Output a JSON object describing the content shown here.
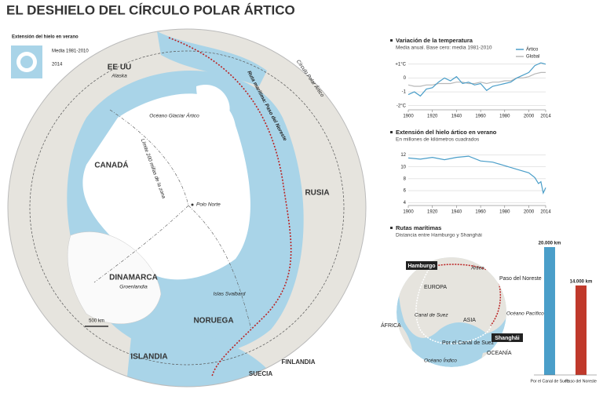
{
  "title": "EL DESHIELO DEL CÍRCULO POLAR ÁRTICO",
  "map": {
    "legend": {
      "title": "Extensión del hielo en verano",
      "mean": "Media 1981-2010",
      "current": "2014"
    },
    "labels": [
      "EE UU",
      "Alaska",
      "Océano Glaciar Ártico",
      "CANADÁ",
      "Límite 200 millas de la zona",
      "Polo Norte",
      "RUSIA",
      "DINAMARCA",
      "Groenlandia",
      "Islas Svalbard",
      "NORUEGA",
      "ISLANDIA",
      "SUECIA",
      "FINLANDIA",
      "Círculo Polar Ártico",
      "Ruta marítima: Paso del Noreste",
      "500 km"
    ]
  },
  "route_map": {
    "labels": [
      "Hamburgo",
      "Shanghái",
      "Ártico",
      "EUROPA",
      "ASIA",
      "ÁFRICA",
      "Canal de Suez",
      "Océano Índico",
      "Océano Pacífico",
      "Paso del Noreste",
      "Por el Canal de Suez",
      "OCEANÍA"
    ]
  },
  "chart_data": [
    {
      "type": "line",
      "title": "Variación de la temperatura",
      "subtitle": "Media anual. Base cero: media 1981-2010",
      "x": [
        1900,
        1905,
        1910,
        1915,
        1920,
        1925,
        1930,
        1935,
        1940,
        1945,
        1950,
        1955,
        1960,
        1965,
        1970,
        1975,
        1980,
        1985,
        1990,
        1995,
        2000,
        2005,
        2010,
        2014
      ],
      "series": [
        {
          "name": "Ártico",
          "color": "#4a9ec9",
          "values": [
            -1.2,
            -1.0,
            -1.3,
            -0.8,
            -0.7,
            -0.3,
            0.0,
            -0.2,
            0.1,
            -0.4,
            -0.3,
            -0.5,
            -0.4,
            -0.9,
            -0.6,
            -0.5,
            -0.4,
            -0.3,
            0.0,
            0.2,
            0.4,
            0.9,
            1.1,
            1.0
          ]
        },
        {
          "name": "Global",
          "color": "#b8b8b8",
          "values": [
            -0.5,
            -0.6,
            -0.6,
            -0.5,
            -0.5,
            -0.4,
            -0.4,
            -0.4,
            -0.3,
            -0.3,
            -0.4,
            -0.4,
            -0.3,
            -0.4,
            -0.3,
            -0.3,
            -0.2,
            -0.2,
            0.0,
            0.0,
            0.1,
            0.3,
            0.4,
            0.4
          ]
        }
      ],
      "xlim": [
        1900,
        2014
      ],
      "xticks": [
        1900,
        1920,
        1940,
        1960,
        1980,
        2000,
        2014
      ],
      "ylim": [
        -2.3,
        1.5
      ],
      "yticks": [
        {
          "value": 1,
          "label": "+1°C"
        },
        0,
        -1,
        {
          "value": -2,
          "label": "-2°C"
        }
      ],
      "grid": true
    },
    {
      "type": "line",
      "title": "Extensión del hielo ártico en verano",
      "subtitle": "En millones de kilómetros cuadrados",
      "x": [
        1900,
        1910,
        1920,
        1930,
        1940,
        1950,
        1960,
        1970,
        1980,
        1990,
        2000,
        2005,
        2008,
        2010,
        2012,
        2014
      ],
      "series": [
        {
          "name": "Ártico",
          "color": "#4a9ec9",
          "values": [
            11.5,
            11.3,
            11.6,
            11.2,
            11.6,
            11.8,
            11.0,
            10.8,
            10.2,
            9.6,
            9.0,
            8.2,
            7.2,
            7.5,
            5.6,
            6.5
          ]
        }
      ],
      "xlim": [
        1900,
        2014
      ],
      "xticks": [
        1900,
        1920,
        1940,
        1960,
        1980,
        2000,
        2014
      ],
      "ylim": [
        3.5,
        13
      ],
      "yticks": [
        4,
        6,
        8,
        10,
        12
      ],
      "grid": true
    },
    {
      "type": "bar",
      "title": "Rutas marítimas",
      "subtitle": "Distancia entre Hamburgo y Shanghái",
      "categories": [
        "Por el Canal de Suez",
        "Paso del Noreste"
      ],
      "values": [
        20000,
        14000
      ],
      "value_labels": [
        "20.000 km",
        "14.000 km"
      ],
      "colors": [
        "#4a9ec9",
        "#c0392b"
      ]
    }
  ]
}
